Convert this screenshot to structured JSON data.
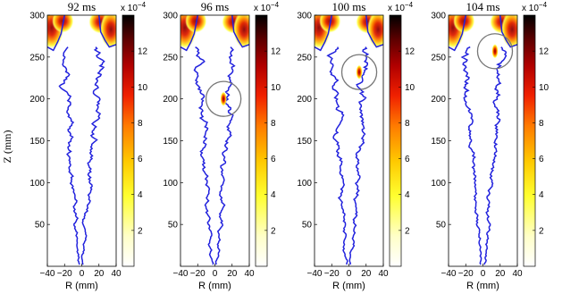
{
  "figure": {
    "ylabel": "Z (mm)",
    "xlabel": "R (mm)"
  },
  "colors": {
    "flame_line": "#2222dd",
    "colormap": [
      "#ffffff",
      "#ffffc0",
      "#ffff40",
      "#ffd000",
      "#ff9000",
      "#ff4000",
      "#e00000",
      "#a00000",
      "#500000",
      "#000000"
    ],
    "circle": "#777777"
  },
  "chart_data": [
    {
      "type": "heatmap",
      "title": "92 ms",
      "xlabel": "R (mm)",
      "ylabel": "Z (mm)",
      "xlim": [
        -40,
        40
      ],
      "ylim": [
        0,
        300
      ],
      "xticks": [
        "−40",
        "−20",
        "0",
        "20",
        "40"
      ],
      "yticks": [
        "50",
        "100",
        "150",
        "200",
        "250",
        "300"
      ],
      "colorbar": {
        "exponent_label": "x 10",
        "exponent_power": "−4",
        "range": [
          0,
          14
        ],
        "ticks": [
          "2",
          "4",
          "6",
          "8",
          "10",
          "12"
        ]
      },
      "highlight": null
    },
    {
      "type": "heatmap",
      "title": "96 ms",
      "xlabel": "R (mm)",
      "ylabel": "",
      "xlim": [
        -40,
        40
      ],
      "ylim": [
        0,
        300
      ],
      "xticks": [
        "−40",
        "−20",
        "0",
        "20",
        "40"
      ],
      "yticks": [
        "50",
        "100",
        "150",
        "200",
        "250",
        "300"
      ],
      "colorbar": {
        "exponent_label": "x 10",
        "exponent_power": "−4",
        "range": [
          0,
          14
        ],
        "ticks": [
          "2",
          "4",
          "6",
          "8",
          "10",
          "12"
        ]
      },
      "highlight": {
        "r": 10,
        "z": 200,
        "radius_mm": 14
      }
    },
    {
      "type": "heatmap",
      "title": "100 ms",
      "xlabel": "R (mm)",
      "ylabel": "",
      "xlim": [
        -40,
        40
      ],
      "ylim": [
        0,
        300
      ],
      "xticks": [
        "−40",
        "−20",
        "0",
        "20",
        "40"
      ],
      "yticks": [
        "50",
        "100",
        "150",
        "200",
        "250",
        "300"
      ],
      "colorbar": {
        "exponent_label": "x 10",
        "exponent_power": "−4",
        "range": [
          0,
          14
        ],
        "ticks": [
          "2",
          "4",
          "6",
          "8",
          "10",
          "12"
        ]
      },
      "highlight": {
        "r": 12,
        "z": 232,
        "radius_mm": 14
      }
    },
    {
      "type": "heatmap",
      "title": "104 ms",
      "xlabel": "R (mm)",
      "ylabel": "",
      "xlim": [
        -40,
        40
      ],
      "ylim": [
        0,
        300
      ],
      "xticks": [
        "−40",
        "−20",
        "0",
        "20",
        "40"
      ],
      "yticks": [
        "50",
        "100",
        "150",
        "200",
        "250",
        "300"
      ],
      "colorbar": {
        "exponent_label": "x 10",
        "exponent_power": "−4",
        "range": [
          0,
          14
        ],
        "ticks": [
          "2",
          "4",
          "6",
          "8",
          "10",
          "12"
        ]
      },
      "highlight": {
        "r": 14,
        "z": 257,
        "radius_mm": 14
      }
    }
  ]
}
